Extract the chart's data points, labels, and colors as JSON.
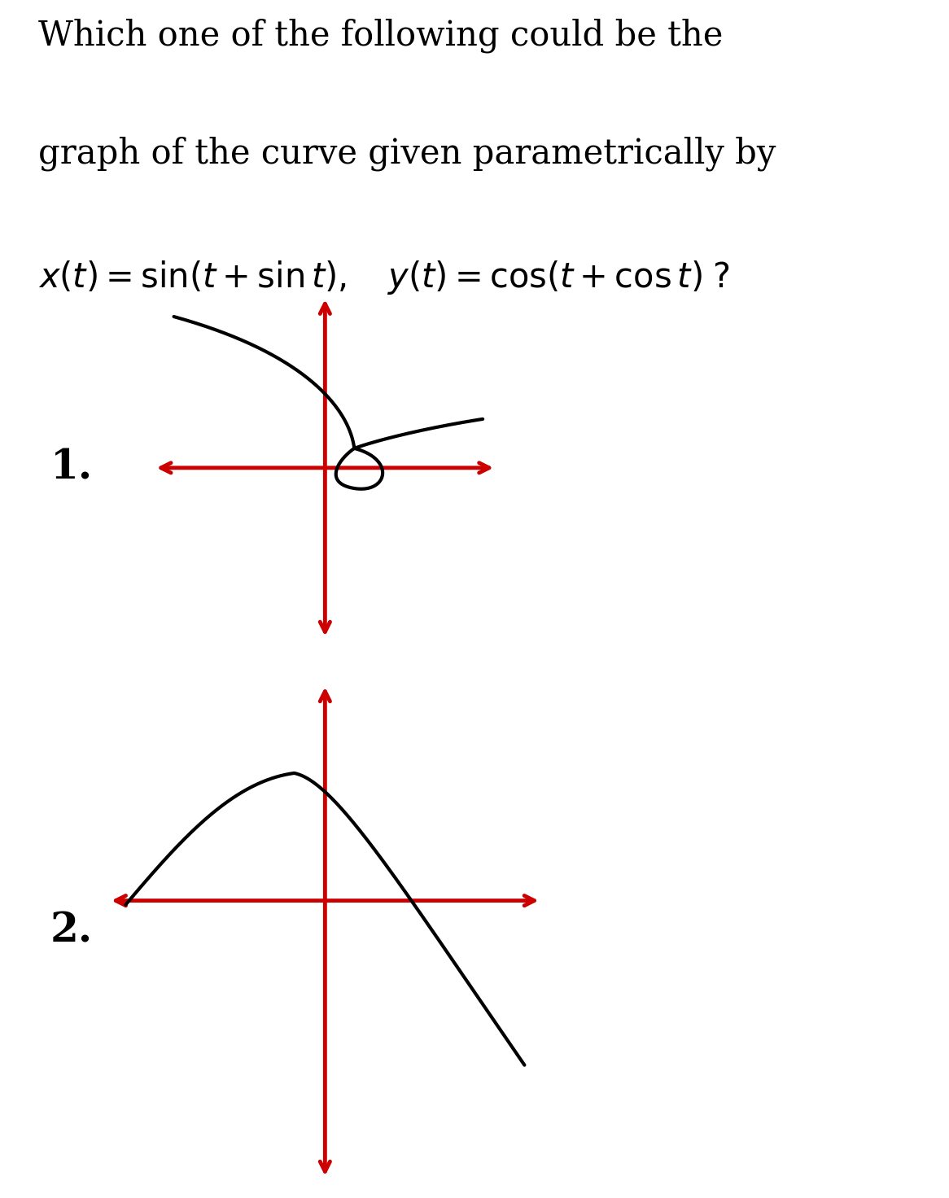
{
  "bg_color": "#ffffff",
  "panel_bg": "#d8f5d8",
  "title_line1": "Which one of the following could be the",
  "title_line2": "graph of the curve given parametrically by",
  "math_line": "x(t)  =  sin(t + sin t),   y(t)  =  cos(t + cos t) ?",
  "label1": "1.",
  "label2": "2.",
  "curve_color": "#000000",
  "axis_color": "#cc0000",
  "axis_lw": 3.5,
  "curve_lw": 3.0,
  "title_fontsize": 30,
  "math_fontsize": 30,
  "label_fontsize": 36
}
